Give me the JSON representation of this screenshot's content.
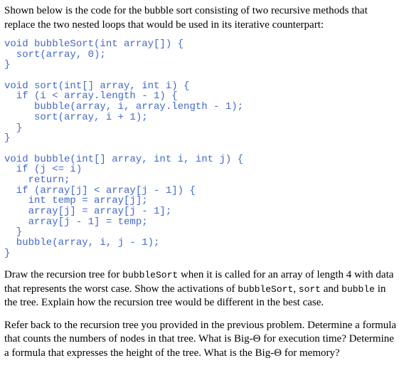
{
  "intro": "Shown below is the code for the bubble sort consisting of two recursive methods that replace the two nested loops that would be used in its iterative counterpart:",
  "code": "void bubbleSort(int array[]) {\n  sort(array, 0);\n}\n\nvoid sort(int[] array, int i) {\n  if (i < array.length - 1) {\n     bubble(array, i, array.length - 1);\n     sort(array, i + 1);\n  }\n}\n\nvoid bubble(int[] array, int i, int j) {\n  if (j <= i)\n    return;\n  if (array[j] < array[j - 1]) {\n    int temp = array[j];\n    array[j] = array[j - 1];\n    array[j - 1] = temp;\n  }\n  bubble(array, i, j - 1);\n}",
  "q1": {
    "p1": "Draw the recursion tree for ",
    "c1": "bubbleSort",
    "p2": " when it is called for an array of length 4 with data that represents the worst case. Show the activations of ",
    "c2": "bubbleSort",
    "p3": ", ",
    "c3": "sort",
    "p4": " and ",
    "c4": "bubble",
    "p5": " in the tree. Explain how the recursion tree would be different in the best case."
  },
  "q2": "Refer back to the recursion tree you provided in the previous problem. Determine a formula that counts the numbers of nodes in that tree. What is Big-Θ for execution time? Determine a formula that expresses the height of the tree. What is the Big-Θ for memory?",
  "style": {
    "code_color": "#4169c8",
    "code_fontsize": 14,
    "text_fontsize": 15,
    "font_family_text": "Georgia, Times New Roman, serif",
    "font_family_code": "Courier New, monospace"
  }
}
